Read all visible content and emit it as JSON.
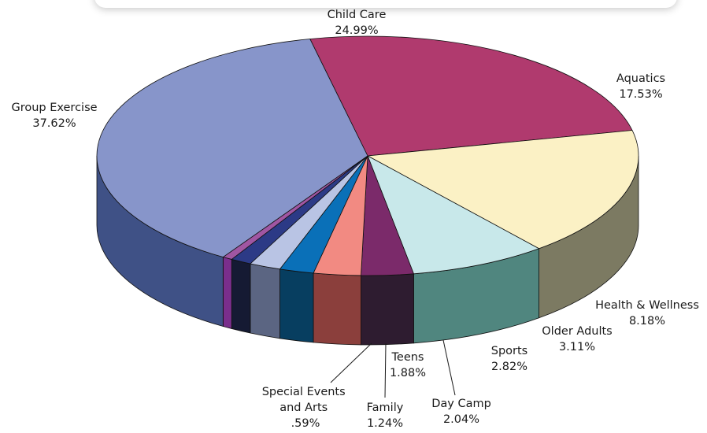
{
  "chart_data": {
    "type": "pie",
    "slices": [
      {
        "label": "Child Care",
        "value": 24.99,
        "value_text": "24.99%",
        "color": "#b03a6e",
        "side_color": "#7a2249",
        "icon": "pie-slice"
      },
      {
        "label": "Aquatics",
        "value": 17.53,
        "value_text": "17.53%",
        "color": "#fbf1c5",
        "side_color": "#7c7a62"
      },
      {
        "label": "Health & Wellness",
        "value": 8.18,
        "value_text": "8.18%",
        "color": "#c8e8ea",
        "side_color": "#50867f"
      },
      {
        "label": "Older Adults",
        "value": 3.11,
        "value_text": "3.11%",
        "color": "#7b2a6a",
        "side_color": "#2e1c30"
      },
      {
        "label": "Sports",
        "value": 2.82,
        "value_text": "2.82%",
        "color": "#f28a82",
        "side_color": "#8b3f3c"
      },
      {
        "label": "Day Camp",
        "value": 2.04,
        "value_text": "2.04%",
        "color": "#0a70b8",
        "side_color": "#073e60"
      },
      {
        "label": "Teens",
        "value": 1.88,
        "value_text": "1.88%",
        "color": "#b9c4e4",
        "side_color": "#5b6582"
      },
      {
        "label": "Family",
        "value": 1.24,
        "value_text": "1.24%",
        "color": "#2c3a86",
        "side_color": "#151a33"
      },
      {
        "label": "Special Events and Arts",
        "value": 0.59,
        "value_text": ".59%",
        "color": "#a056a2",
        "side_color": "#7a2e8c"
      },
      {
        "label": "Group Exercise",
        "value": 37.62,
        "value_text": "37.62%",
        "color": "#8795ca",
        "side_color": "#3f5186"
      }
    ]
  }
}
